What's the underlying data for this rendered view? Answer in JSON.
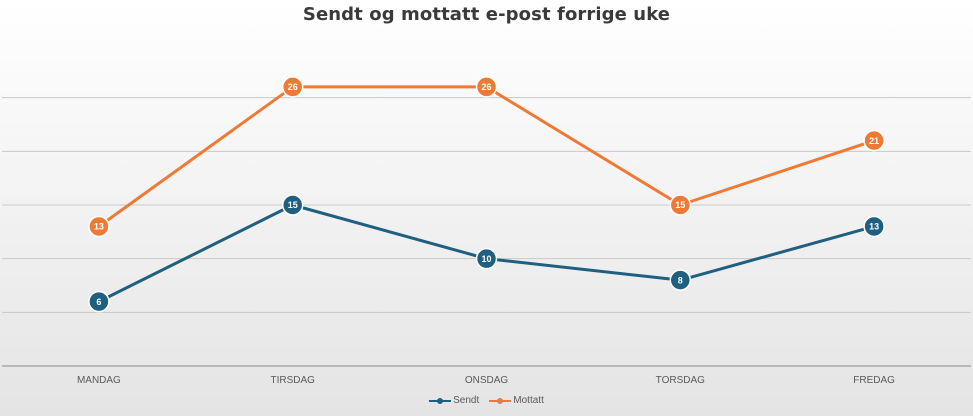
{
  "chart_data": {
    "type": "line",
    "title": "Sendt og mottatt e-post forrige uke",
    "categories": [
      "MANDAG",
      "TIRSDAG",
      "ONSDAG",
      "TORSDAG",
      "FREDAG"
    ],
    "series": [
      {
        "name": "Sendt",
        "values": [
          6,
          15,
          10,
          8,
          13
        ],
        "color": "#1f5f7f"
      },
      {
        "name": "Mottatt",
        "values": [
          13,
          26,
          26,
          15,
          21
        ],
        "color": "#ef7a35"
      }
    ],
    "ylim": [
      0,
      30
    ],
    "grid": true,
    "data_labels": true,
    "y_tick_labels_visible": false,
    "legend_position": "bottom",
    "colors": {
      "gridline": "#c9c9c9",
      "baseline": "#8a8a8a",
      "tick_text": "#595959",
      "title_text": "#3a3a3a"
    }
  }
}
